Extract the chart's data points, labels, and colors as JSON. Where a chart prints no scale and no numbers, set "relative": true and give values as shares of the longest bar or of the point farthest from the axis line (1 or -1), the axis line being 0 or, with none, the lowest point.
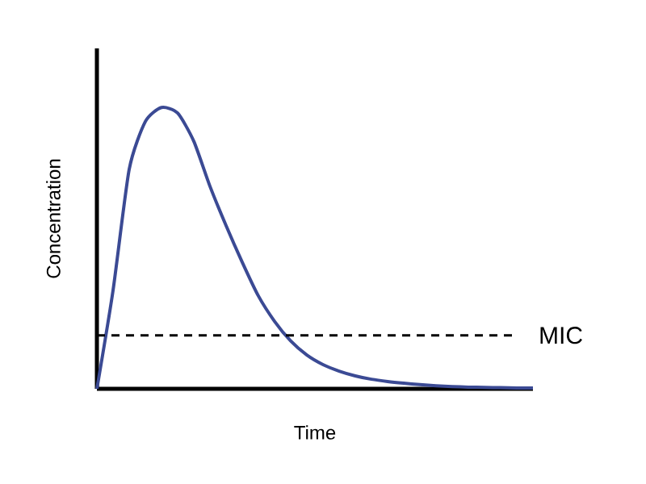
{
  "chart_data": {
    "type": "line",
    "relative": true,
    "xlabel": "Time",
    "ylabel": "Concentration",
    "categories": [
      null,
      null,
      null,
      null,
      null,
      null,
      null,
      null,
      null,
      null,
      null,
      null,
      null,
      null,
      null,
      null,
      null,
      null,
      null,
      null,
      null,
      null,
      null,
      null,
      null,
      null,
      null,
      null
    ],
    "series": [
      {
        "color": "#3b4a94",
        "values": [
          0,
          0.35,
          0.78,
          0.95,
          1.0,
          0.98,
          0.88,
          0.72,
          0.58,
          0.45,
          0.33,
          0.24,
          0.17,
          0.12,
          0.086,
          0.063,
          0.046,
          0.034,
          0.026,
          0.02,
          0.015,
          0.011,
          0.008,
          0.006,
          0.005,
          0.004,
          0.003,
          0.003
        ]
      }
    ],
    "ref_lines": [
      {
        "axis": "y",
        "value": 0.19,
        "label": "MIC",
        "color": "#000000",
        "line_style": "dashed"
      }
    ]
  }
}
